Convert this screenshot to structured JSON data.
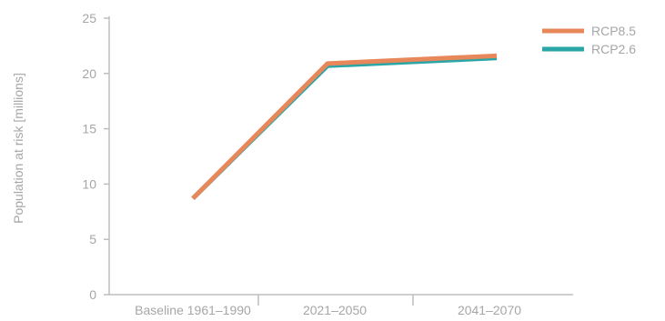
{
  "chart_data": {
    "type": "line",
    "categories": [
      "Baseline 1961–1990",
      "2021–2050",
      "2041–2070"
    ],
    "series": [
      {
        "name": "RCP8.5",
        "color": "#e8875a",
        "values": [
          8.7,
          20.9,
          21.6
        ]
      },
      {
        "name": "RCP2.6",
        "color": "#2aa6a6",
        "values": [
          8.7,
          20.7,
          21.4
        ]
      }
    ],
    "ylabel": "Population at risk [millions]",
    "xlabel": "",
    "ylim": [
      0,
      25
    ],
    "yticks": [
      "0",
      "5",
      "10",
      "15",
      "20",
      "25"
    ],
    "grid": false,
    "legend_position": "top-right"
  }
}
